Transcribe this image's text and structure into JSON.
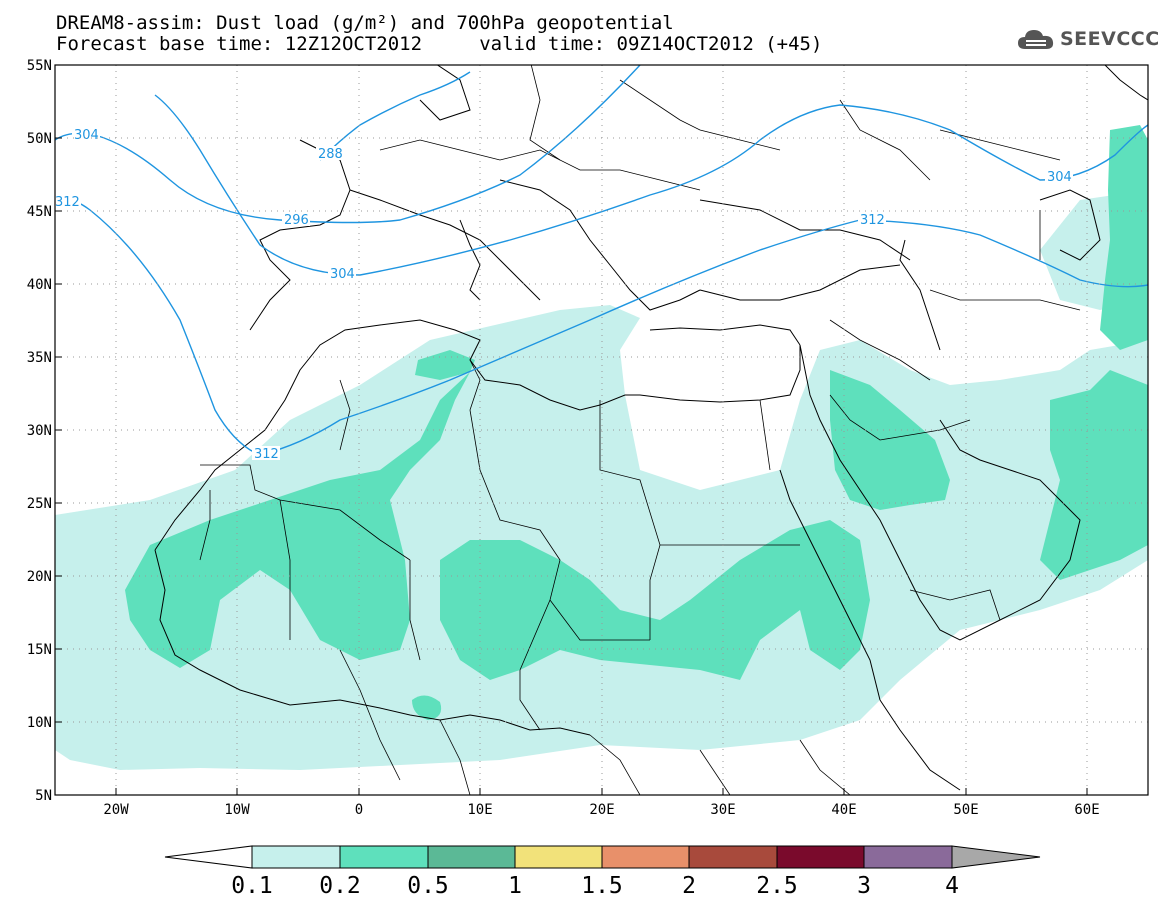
{
  "header": {
    "title_line1": "DREAM8-assim: Dust load (g/m²) and 700hPa geopotential",
    "title_line2": "Forecast base time: 12Z12OCT2012     valid time: 09Z14OCT2012 (+45)"
  },
  "logo": {
    "icon": "cloud-icon",
    "text": "SEEVCCC"
  },
  "map": {
    "lon_range": [
      -25,
      65
    ],
    "lat_range": [
      5,
      55
    ],
    "lat_labels": [
      "55N",
      "50N",
      "45N",
      "40N",
      "35N",
      "30N",
      "25N",
      "20N",
      "15N",
      "10N",
      "5N"
    ],
    "lon_labels": [
      "20W",
      "10W",
      "0",
      "10E",
      "20E",
      "30E",
      "40E",
      "50E",
      "60E"
    ],
    "grid": "dotted"
  },
  "geopotential_contours": {
    "color": "#1f95e0",
    "labels": [
      "304",
      "312",
      "296",
      "288",
      "304",
      "304",
      "312",
      "312"
    ]
  },
  "colorbar": {
    "levels": [
      "0.1",
      "0.2",
      "0.5",
      "1",
      "1.5",
      "2",
      "2.5",
      "3",
      "4"
    ],
    "colors": [
      "#c6f0ec",
      "#5ee0bc",
      "#5bb996",
      "#f2e27a",
      "#e8906a",
      "#a84a3c",
      "#7a0a2c",
      "#8a6a9a",
      "#a8a8a8"
    ],
    "below_color": "#ffffff",
    "above_color": "#a8a8a8"
  }
}
